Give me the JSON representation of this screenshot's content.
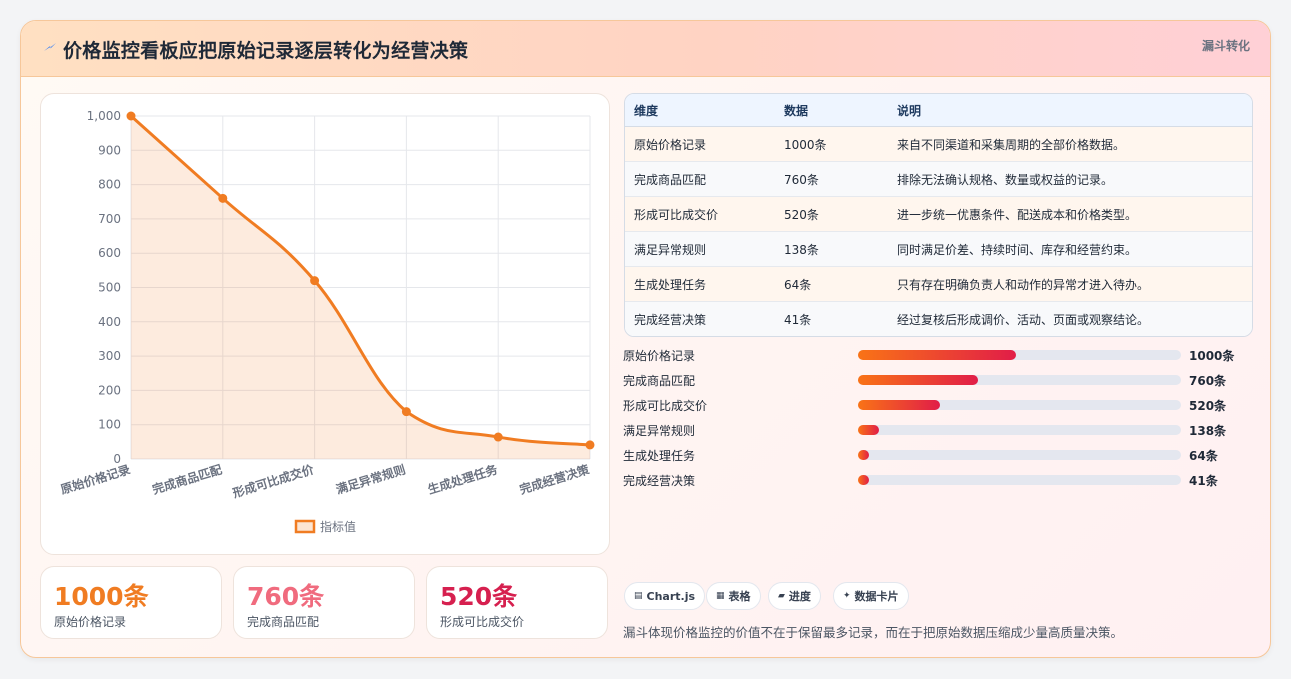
{
  "header": {
    "title": "价格监控看板应把原始记录逐层转化为经营决策",
    "tag": "漏斗转化"
  },
  "colors": {
    "accent": "#f07c22",
    "accent_pink": "#f06b7e",
    "accent_red": "#d6204f",
    "bar_from": "#f97316",
    "bar_to": "#e11d48"
  },
  "chart_data": {
    "type": "area",
    "categories": [
      "原始价格记录",
      "完成商品匹配",
      "形成可比成交价",
      "满足异常规则",
      "生成处理任务",
      "完成经营决策"
    ],
    "series": [
      {
        "name": "指标值",
        "values": [
          1000,
          760,
          520,
          138,
          64,
          41
        ]
      }
    ],
    "ylim": [
      0,
      1000
    ],
    "yticks": [
      "1,000",
      "900",
      "800",
      "700",
      "600",
      "500",
      "400",
      "300",
      "200",
      "100",
      "0"
    ],
    "grid": true,
    "legend": "bottom",
    "color": "#f07c22"
  },
  "stats": [
    {
      "value": "1000条",
      "label": "原始价格记录",
      "color": "#f07c22"
    },
    {
      "value": "760条",
      "label": "完成商品匹配",
      "color": "#f06b7e"
    },
    {
      "value": "520条",
      "label": "形成可比成交价",
      "color": "#d6204f"
    }
  ],
  "table": {
    "headers": [
      "维度",
      "数据",
      "说明"
    ],
    "rows": [
      [
        "原始价格记录",
        "1000条",
        "来自不同渠道和采集周期的全部价格数据。"
      ],
      [
        "完成商品匹配",
        "760条",
        "排除无法确认规格、数量或权益的记录。"
      ],
      [
        "形成可比成交价",
        "520条",
        "进一步统一优惠条件、配送成本和价格类型。"
      ],
      [
        "满足异常规则",
        "138条",
        "同时满足价差、持续时间、库存和经营约束。"
      ],
      [
        "生成处理任务",
        "64条",
        "只有存在明确负责人和动作的异常才进入待办。"
      ],
      [
        "完成经营决策",
        "41条",
        "经过复核后形成调价、活动、页面或观察结论。"
      ]
    ]
  },
  "progress": [
    {
      "label": "原始价格记录",
      "value": "1000条",
      "fraction": 0.49
    },
    {
      "label": "完成商品匹配",
      "value": "760条",
      "fraction": 0.37
    },
    {
      "label": "形成可比成交价",
      "value": "520条",
      "fraction": 0.255
    },
    {
      "label": "满足异常规则",
      "value": "138条",
      "fraction": 0.065
    },
    {
      "label": "生成处理任务",
      "value": "64条",
      "fraction": 0.035
    },
    {
      "label": "完成经营决策",
      "value": "41条",
      "fraction": 0.035
    }
  ],
  "chips": [
    {
      "icon": "chart-icon",
      "glyph": "▤",
      "label": "Chart.js"
    },
    {
      "icon": "table-icon",
      "glyph": "▦",
      "label": "表格"
    },
    {
      "icon": "progress-icon",
      "glyph": "▰",
      "label": "进度"
    },
    {
      "icon": "card-icon",
      "glyph": "✦",
      "label": "数据卡片"
    }
  ],
  "footer": "漏斗体现价格监控的价值不在于保留最多记录，而在于把原始数据压缩成少量高质量决策。"
}
